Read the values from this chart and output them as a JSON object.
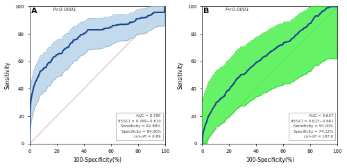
{
  "panel_A": {
    "label": "A",
    "p_value": "P<0.0001",
    "auc": 0.79,
    "ci_low": 0.769,
    "ci_high": 0.81,
    "sensitivity": 62.88,
    "specificity": 84.06,
    "cutoff": 6.69,
    "curve_color": "#1c3f8f",
    "ci_fill_color": "#b8d4e8",
    "ci_fill_alpha": 0.85,
    "ci_edge_color": "#8ab4d0",
    "xlabel": "100-Specificity(%)",
    "ylabel": "Sensitivity",
    "yticks": [
      0,
      20,
      40,
      60,
      80,
      100
    ],
    "xticks": [
      0,
      20,
      40,
      60,
      80,
      100
    ],
    "text_box": "AUC = 0.790\n95%CI = 0.769~0.810\nSensitivity = 62.88%\nSpecificity = 84.06%\ncut-off = 6.69"
  },
  "panel_B": {
    "label": "B",
    "p_value": "P<0.0001",
    "auc": 0.637,
    "ci_low": 0.613,
    "ci_high": 0.661,
    "sensitivity": 50.0,
    "specificity": 74.12,
    "cutoff": 187.6,
    "curve_color": "#1c3f8f",
    "ci_fill_color": "#33ee33",
    "ci_fill_alpha": 0.75,
    "ci_edge_color": "#22cc22",
    "xlabel": "100-Specificity(%)",
    "ylabel": "Sensitivity",
    "yticks": [
      0,
      20,
      40,
      60,
      80,
      100
    ],
    "xticks": [
      0,
      20,
      40,
      60,
      80,
      100
    ],
    "text_box": "AUC = 0.637\n95%CI = 0.613~0.661\nSensitivity = 50.00%\nSpecificity = 74.12%\ncut-off = 187.6"
  },
  "background_color": "#ffffff",
  "reference_line_color_A": "#dbb8b8",
  "reference_line_color_B": "#c8c8c8"
}
